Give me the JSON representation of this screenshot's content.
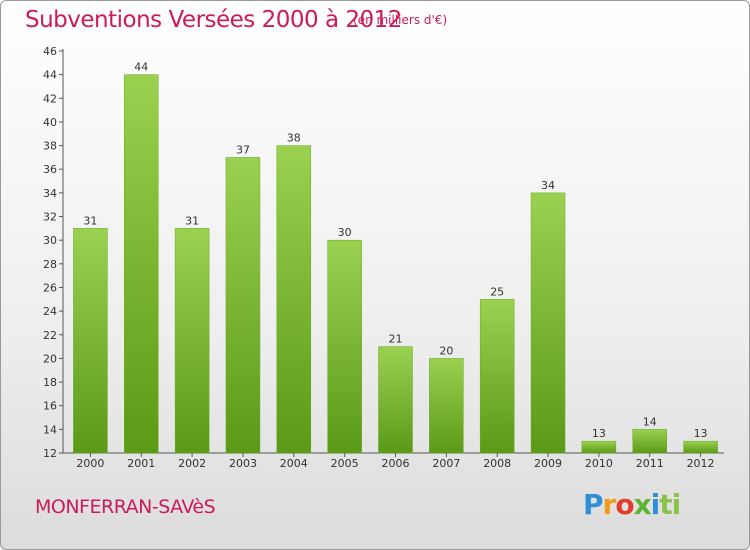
{
  "header": {
    "title": "Subventions Versées 2000 à 2012",
    "subtitle": "(en milliers d'€)"
  },
  "footer": {
    "commune": "MONFERRAN-SAVèS",
    "logo": [
      "P",
      "r",
      "o",
      "x",
      "i",
      "ti"
    ]
  },
  "colors": {
    "accent": "#cc1a5a",
    "bar_top": "#9ad150",
    "bar_bottom": "#5a9a16"
  },
  "chart_data": {
    "type": "bar",
    "title": "Subventions Versées 2000 à 2012",
    "subtitle": "(en milliers d'€)",
    "categories": [
      "2000",
      "2001",
      "2002",
      "2003",
      "2004",
      "2005",
      "2006",
      "2007",
      "2008",
      "2009",
      "2010",
      "2011",
      "2012"
    ],
    "values": [
      31,
      44,
      31,
      37,
      38,
      30,
      21,
      20,
      25,
      34,
      13,
      14,
      13
    ],
    "ylim": [
      12,
      46
    ],
    "yticks": [
      12,
      14,
      16,
      18,
      20,
      22,
      24,
      26,
      28,
      30,
      32,
      34,
      36,
      38,
      40,
      42,
      44,
      46
    ],
    "grid": false,
    "data_labels": true
  }
}
